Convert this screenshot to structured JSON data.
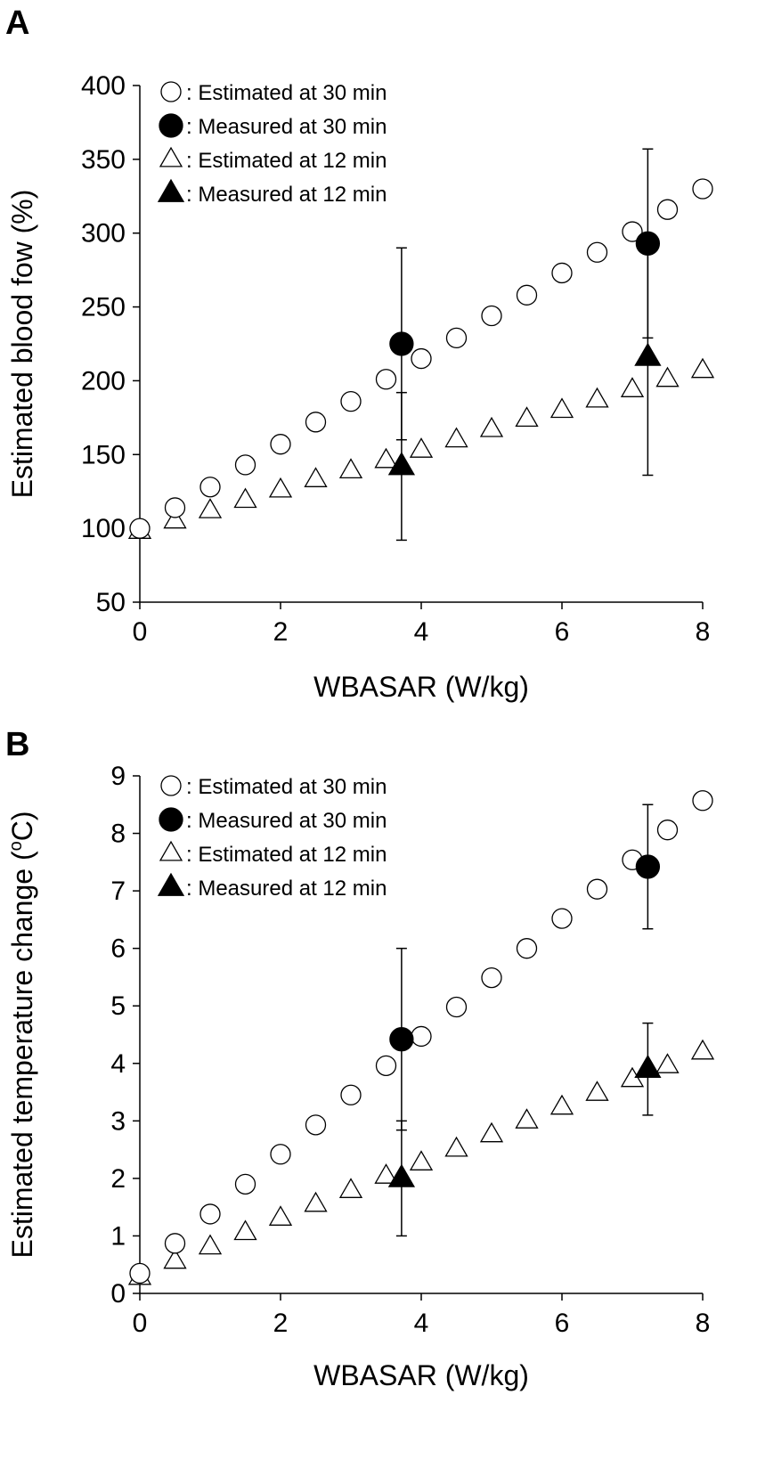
{
  "chart_data": [
    {
      "panel_label": "A",
      "type": "scatter",
      "xlabel": "WBASAR (W/kg)",
      "ylabel": "Estimated blood fow (%)",
      "xlim": [
        0,
        8
      ],
      "ylim": [
        50,
        400
      ],
      "xticks": [
        0,
        2,
        4,
        6,
        8
      ],
      "yticks": [
        50,
        100,
        150,
        200,
        250,
        300,
        350,
        400
      ],
      "legend_position": "top-left",
      "series": [
        {
          "name": ": Estimated at 30 min",
          "marker": "circle-open",
          "points": [
            [
              0,
              100
            ],
            [
              0.5,
              114
            ],
            [
              1,
              128
            ],
            [
              1.5,
              143
            ],
            [
              2,
              157
            ],
            [
              2.5,
              172
            ],
            [
              3,
              186
            ],
            [
              3.5,
              201
            ],
            [
              4,
              215
            ],
            [
              4.5,
              229
            ],
            [
              5,
              244
            ],
            [
              5.5,
              258
            ],
            [
              6,
              273
            ],
            [
              6.5,
              287
            ],
            [
              7,
              301
            ],
            [
              7.5,
              316
            ],
            [
              8,
              330
            ]
          ]
        },
        {
          "name": ": Measured at 30 min",
          "marker": "circle-filled",
          "points": [
            [
              3.72,
              225
            ],
            [
              7.22,
              293
            ]
          ],
          "errors": [
            65,
            64
          ]
        },
        {
          "name": ": Estimated at 12 min",
          "marker": "triangle-open",
          "points": [
            [
              0,
              98
            ],
            [
              0.5,
              105
            ],
            [
              1,
              112
            ],
            [
              1.5,
              119
            ],
            [
              2,
              126
            ],
            [
              2.5,
              133
            ],
            [
              3,
              139
            ],
            [
              3.5,
              146
            ],
            [
              4,
              153
            ],
            [
              4.5,
              160
            ],
            [
              5,
              167
            ],
            [
              5.5,
              174
            ],
            [
              6,
              180
            ],
            [
              6.5,
              187
            ],
            [
              7,
              194
            ],
            [
              7.5,
              201
            ],
            [
              8,
              207
            ]
          ]
        },
        {
          "name": ": Measured at 12 min",
          "marker": "triangle-filled",
          "points": [
            [
              3.72,
              142
            ],
            [
              7.22,
              216
            ]
          ],
          "errors": [
            50,
            80
          ]
        }
      ]
    },
    {
      "panel_label": "B",
      "type": "scatter",
      "xlabel": "WBASAR (W/kg)",
      "ylabel": "Estimated temperature change (°C)",
      "ylabel_prefix": "Estimated temperature change (",
      "ylabel_super": "o",
      "ylabel_suffix": "C)",
      "xlim": [
        0,
        8
      ],
      "ylim": [
        0,
        9
      ],
      "xticks": [
        0,
        2,
        4,
        6,
        8
      ],
      "yticks": [
        0,
        1,
        2,
        3,
        4,
        5,
        6,
        7,
        8,
        9
      ],
      "legend_position": "top-left",
      "series": [
        {
          "name": ": Estimated at 30 min",
          "marker": "circle-open",
          "points": [
            [
              0,
              0.35
            ],
            [
              0.5,
              0.87
            ],
            [
              1,
              1.38
            ],
            [
              1.5,
              1.9
            ],
            [
              2,
              2.42
            ],
            [
              2.5,
              2.93
            ],
            [
              3,
              3.45
            ],
            [
              3.5,
              3.96
            ],
            [
              4,
              4.47
            ],
            [
              4.5,
              4.98
            ],
            [
              5,
              5.49
            ],
            [
              5.5,
              6.0
            ],
            [
              6,
              6.52
            ],
            [
              6.5,
              7.03
            ],
            [
              7,
              7.54
            ],
            [
              7.5,
              8.06
            ],
            [
              8,
              8.57
            ]
          ]
        },
        {
          "name": ": Measured at 30 min",
          "marker": "circle-filled",
          "points": [
            [
              3.72,
              4.42
            ],
            [
              7.22,
              7.42
            ]
          ],
          "errors": [
            1.58,
            1.08
          ]
        },
        {
          "name": ": Estimated at 12 min",
          "marker": "triangle-open",
          "points": [
            [
              0,
              0.28
            ],
            [
              0.5,
              0.56
            ],
            [
              1,
              0.81
            ],
            [
              1.5,
              1.06
            ],
            [
              2,
              1.31
            ],
            [
              2.5,
              1.55
            ],
            [
              3,
              1.79
            ],
            [
              3.5,
              2.04
            ],
            [
              4,
              2.27
            ],
            [
              4.5,
              2.51
            ],
            [
              5,
              2.76
            ],
            [
              5.5,
              3.0
            ],
            [
              6,
              3.24
            ],
            [
              6.5,
              3.48
            ],
            [
              7,
              3.72
            ],
            [
              7.5,
              3.96
            ],
            [
              8,
              4.2
            ]
          ]
        },
        {
          "name": ": Measured at 12 min",
          "marker": "triangle-filled",
          "points": [
            [
              3.72,
              2.0
            ],
            [
              7.22,
              3.9
            ]
          ],
          "errors": [
            1.0,
            0.8
          ]
        }
      ]
    }
  ]
}
